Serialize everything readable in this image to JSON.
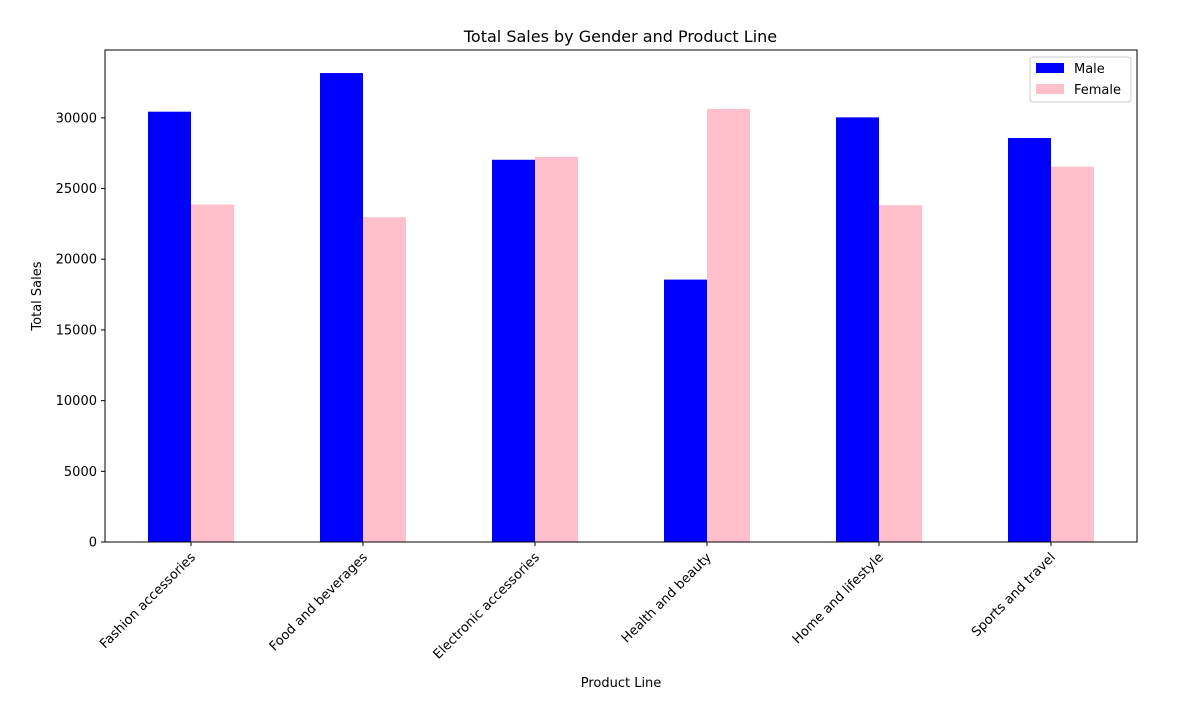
{
  "chart_data": {
    "type": "bar",
    "title": "Total Sales by Gender and Product Line",
    "xlabel": "Product Line",
    "ylabel": "Total Sales",
    "categories": [
      "Fashion accessories",
      "Food and beverages",
      "Electronic accessories",
      "Health and beauty",
      "Home and lifestyle",
      "Sports and travel"
    ],
    "series": [
      {
        "name": "Male",
        "color": "#0000ff",
        "values": [
          30437,
          33170,
          27036,
          18560,
          30036,
          28575
        ]
      },
      {
        "name": "Female",
        "color": "#ffc0cb",
        "values": [
          23868,
          22974,
          27235,
          30632,
          23826,
          26548
        ]
      }
    ],
    "ylim": [
      0,
      34800
    ],
    "yticks": [
      0,
      5000,
      10000,
      15000,
      20000,
      25000,
      30000
    ],
    "ytick_labels": [
      "0",
      "5000",
      "10000",
      "15000",
      "20000",
      "25000",
      "30000"
    ],
    "x_tick_rotation": 45,
    "legend_position": "top-right",
    "grid": false
  }
}
